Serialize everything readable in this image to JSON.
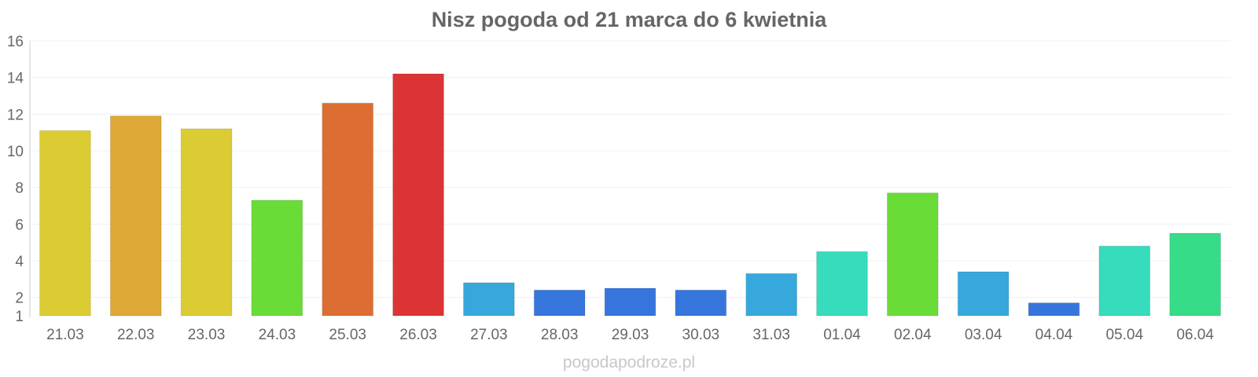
{
  "chart_data": {
    "type": "bar",
    "title": "Nisz pogoda od 21 marca do 6 kwietnia",
    "categories": [
      "21.03",
      "22.03",
      "23.03",
      "24.03",
      "25.03",
      "26.03",
      "27.03",
      "28.03",
      "29.03",
      "30.03",
      "31.03",
      "01.04",
      "02.04",
      "03.04",
      "04.04",
      "05.04",
      "06.04"
    ],
    "values": [
      11.1,
      11.9,
      11.2,
      7.3,
      12.6,
      14.2,
      2.8,
      2.4,
      2.5,
      2.4,
      3.3,
      4.5,
      7.7,
      3.4,
      1.7,
      4.8,
      5.5
    ],
    "bar_colors": [
      "#dccc34",
      "#dea936",
      "#dccc34",
      "#6adc38",
      "#dc6e34",
      "#dc3434",
      "#36a8dc",
      "#3676dc",
      "#3676dc",
      "#3676dc",
      "#36a8dc",
      "#36dcbc",
      "#6adc38",
      "#36a8dc",
      "#3676dc",
      "#36dcbc",
      "#36dc88"
    ],
    "y_ticks": [
      1,
      2,
      4,
      6,
      8,
      10,
      12,
      14,
      16
    ],
    "ylim": [
      1,
      16
    ],
    "xlabel": "",
    "ylabel": "",
    "grid": true
  },
  "watermark": "pogodapodroze.pl"
}
